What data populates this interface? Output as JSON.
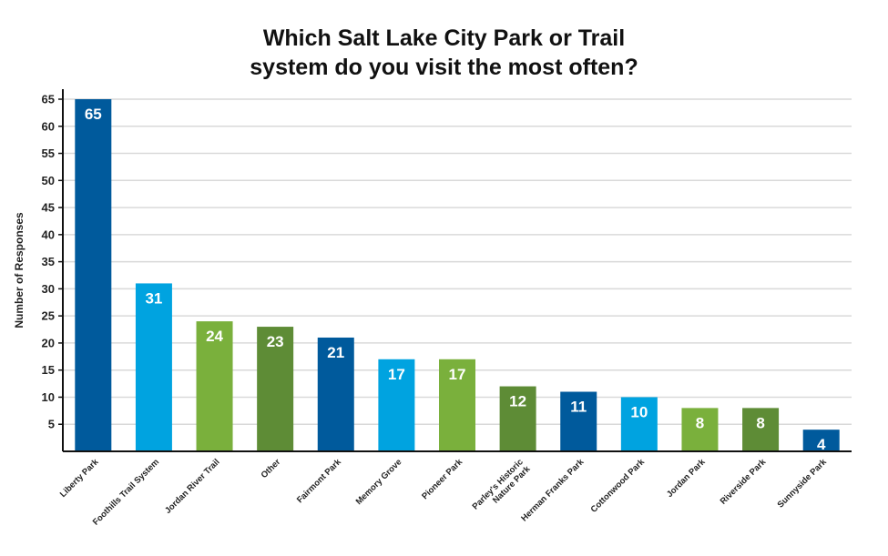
{
  "chart_data": {
    "type": "bar",
    "title_line1": "Which Salt Lake City Park or Trail",
    "title_line2": "system do you visit the most often?",
    "xlabel": "",
    "ylabel": "Number of Responses",
    "ylim": [
      0,
      65
    ],
    "yticks": [
      5,
      10,
      15,
      20,
      25,
      30,
      35,
      40,
      45,
      50,
      55,
      60,
      65
    ],
    "grid": true,
    "categories": [
      [
        "Liberty Park"
      ],
      [
        "Foothills Trail System"
      ],
      [
        "Jordan River Trail"
      ],
      [
        "Other"
      ],
      [
        "Fairmont Park"
      ],
      [
        "Memory Grove"
      ],
      [
        "Pioneer Park"
      ],
      [
        "Parley's Historic",
        "Nature Park"
      ],
      [
        "Herman Franks Park"
      ],
      [
        "Cottonwood Park"
      ],
      [
        "Jordan Park"
      ],
      [
        "Riverside Park"
      ],
      [
        "Sunnyside Park"
      ]
    ],
    "values": [
      65,
      31,
      24,
      23,
      21,
      17,
      17,
      12,
      11,
      10,
      8,
      8,
      4
    ],
    "bar_colors": [
      "#005a9c",
      "#00a3e0",
      "#7ab03c",
      "#5e8c36",
      "#005a9c",
      "#00a3e0",
      "#7ab03c",
      "#5e8c36",
      "#005a9c",
      "#00a3e0",
      "#7ab03c",
      "#5e8c36",
      "#005a9c"
    ],
    "grid_color": "#d9d9d9",
    "axis_color": "#111111"
  }
}
